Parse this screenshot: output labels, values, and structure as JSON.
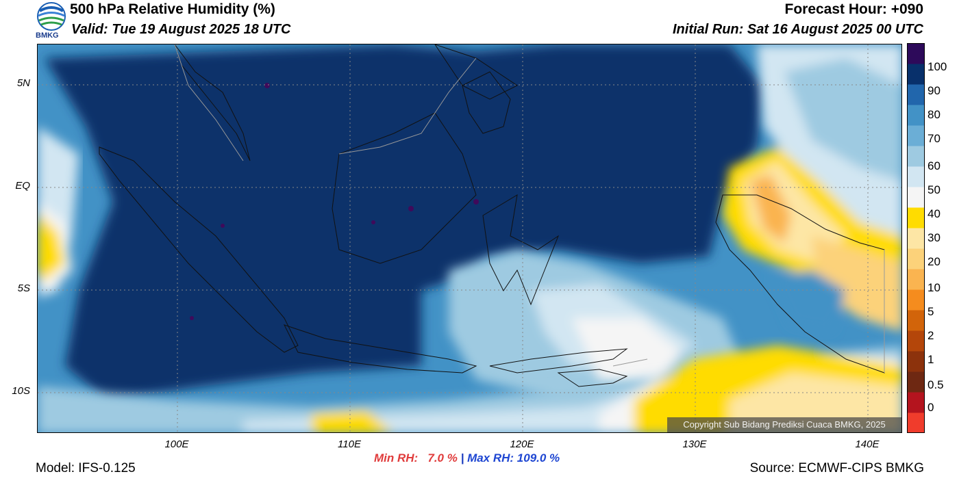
{
  "header": {
    "title": "500 hPa Relative Humidity (%)",
    "valid": "Valid: Tue 19 August 2025 18 UTC",
    "forecast_hour": "Forecast Hour: +090",
    "initial_run": "Initial Run: Sat 16 August 2025 00 UTC",
    "logo_text": "BMKG"
  },
  "map": {
    "lat_labels": [
      "5N",
      "EQ",
      "5S",
      "10S"
    ],
    "lon_labels": [
      "100E",
      "110E",
      "120E",
      "130E",
      "140E"
    ],
    "copyright": "Copyright Sub Bidang Prediksi Cuaca BMKG, 2025"
  },
  "colorbar": {
    "labels": [
      "100",
      "90",
      "80",
      "70",
      "60",
      "50",
      "40",
      "30",
      "20",
      "10",
      "5",
      "2",
      "1",
      "0.5",
      "0"
    ],
    "colors": [
      "#f03c2c",
      "#b4141e",
      "#6e2812",
      "#8c320c",
      "#b4460a",
      "#d2640a",
      "#f58c1e",
      "#fab450",
      "#fcd27a",
      "#fde6a5",
      "#ffdc00",
      "#f5f5f5",
      "#d2e6f2",
      "#9ecae1",
      "#6baed6",
      "#4292c6",
      "#2166ac",
      "#08306b",
      "#2d0a5a"
    ]
  },
  "stats": {
    "min": "Min RH:   7.0 %",
    "separator": " | ",
    "max": "Max RH: 109.0 %"
  },
  "footer": {
    "model": "Model: IFS-0.125",
    "source": "Source: ECMWF-CIPS BMKG"
  }
}
